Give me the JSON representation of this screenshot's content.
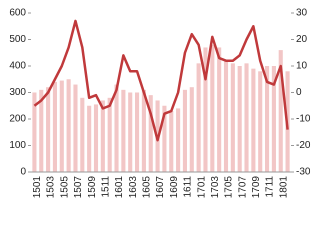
{
  "chart_data": {
    "type": "bar",
    "categories": [
      "1501",
      null,
      "1503",
      null,
      "1505",
      null,
      "1507",
      null,
      "1509",
      null,
      "1511",
      null,
      "1601",
      null,
      "1603",
      null,
      "1605",
      null,
      "1607",
      null,
      "1609",
      null,
      "1611",
      null,
      "1701",
      null,
      "1703",
      null,
      "1705",
      null,
      "1707",
      null,
      "1709",
      null,
      "1711",
      null,
      "1801",
      null
    ],
    "series": [
      {
        "type": "bar",
        "color": "#f2c6c6",
        "values": [
          300,
          310,
          320,
          340,
          345,
          350,
          330,
          280,
          250,
          255,
          270,
          280,
          330,
          310,
          300,
          300,
          310,
          290,
          270,
          250,
          230,
          240,
          310,
          320,
          410,
          470,
          480,
          470,
          420,
          410,
          400,
          410,
          390,
          380,
          400,
          400,
          460,
          380
        ]
      },
      {
        "type": "line",
        "axis": "y2",
        "color": "#c0393b",
        "values": [
          -5,
          -3,
          0,
          5,
          10,
          17,
          27,
          17,
          -2,
          -1,
          -6,
          -5,
          1,
          14,
          8,
          8,
          0,
          -8,
          -18,
          -8,
          -7,
          0,
          15,
          22,
          18,
          5,
          21,
          13,
          12,
          12,
          14,
          20,
          25,
          12,
          4,
          3,
          10,
          -14
        ]
      }
    ],
    "ylim": [
      0,
      600
    ],
    "yticks": [
      0,
      100,
      200,
      300,
      400,
      500,
      600
    ],
    "y2lim": [
      -30,
      30
    ],
    "y2ticks": [
      -30,
      -20,
      -10,
      0,
      10,
      20,
      30
    ],
    "grid": false
  }
}
